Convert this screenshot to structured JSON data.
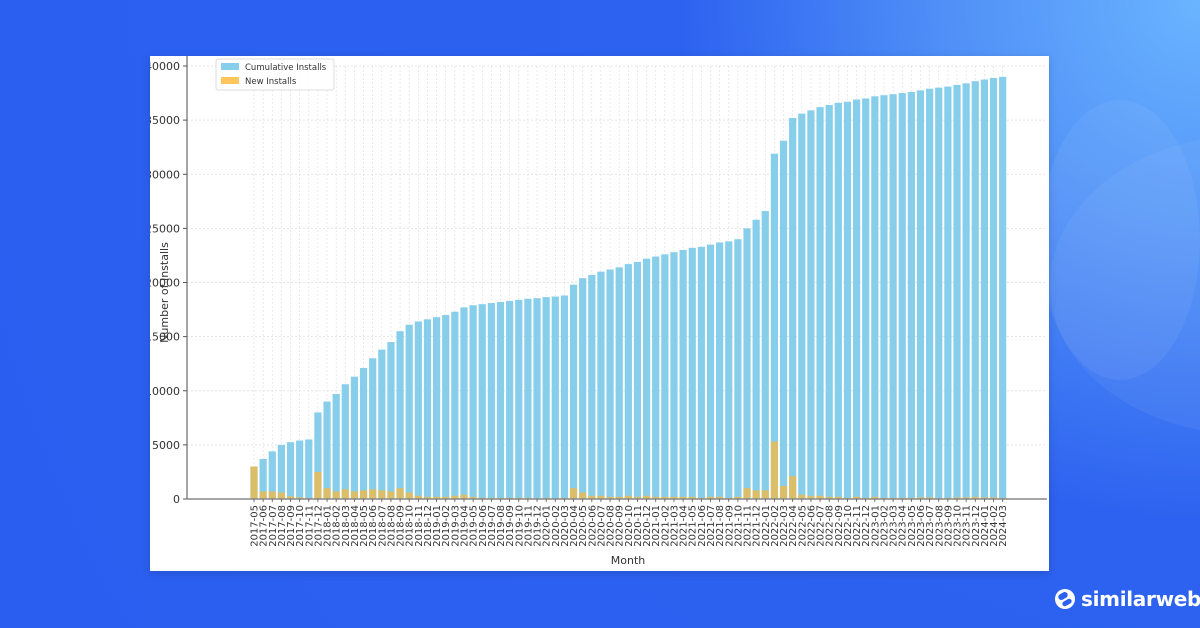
{
  "brand": {
    "name": "similarweb"
  },
  "chart_data": {
    "type": "bar",
    "title": "",
    "xlabel": "Month",
    "ylabel": "Number of Installs",
    "ylim": [
      0,
      40000
    ],
    "yticks": [
      0,
      5000,
      10000,
      15000,
      20000,
      25000,
      30000,
      35000,
      40000
    ],
    "grid": true,
    "legend_position": "upper left",
    "colors": {
      "cumulative": "#87ceeb",
      "new": "#ffb833",
      "axis": "#555555",
      "grid": "#dddddd"
    },
    "categories": [
      "2017-05",
      "2017-06",
      "2017-07",
      "2017-08",
      "2017-09",
      "2017-10",
      "2017-11",
      "2017-12",
      "2018-01",
      "2018-02",
      "2018-03",
      "2018-04",
      "2018-05",
      "2018-06",
      "2018-07",
      "2018-08",
      "2018-09",
      "2018-10",
      "2018-11",
      "2018-12",
      "2019-01",
      "2019-02",
      "2019-03",
      "2019-04",
      "2019-05",
      "2019-06",
      "2019-07",
      "2019-08",
      "2019-09",
      "2019-10",
      "2019-11",
      "2019-12",
      "2020-01",
      "2020-02",
      "2020-03",
      "2020-04",
      "2020-05",
      "2020-06",
      "2020-07",
      "2020-08",
      "2020-09",
      "2020-10",
      "2020-11",
      "2020-12",
      "2021-01",
      "2021-02",
      "2021-03",
      "2021-04",
      "2021-05",
      "2021-06",
      "2021-07",
      "2021-08",
      "2021-09",
      "2021-10",
      "2021-11",
      "2021-12",
      "2022-01",
      "2022-02",
      "2022-03",
      "2022-04",
      "2022-05",
      "2022-06",
      "2022-07",
      "2022-08",
      "2022-09",
      "2022-10",
      "2022-11",
      "2022-12",
      "2023-01",
      "2023-02",
      "2023-03",
      "2023-04",
      "2023-05",
      "2023-06",
      "2023-07",
      "2023-08",
      "2023-09",
      "2023-10",
      "2023-11",
      "2023-12",
      "2024-01",
      "2024-02",
      "2024-03"
    ],
    "series": [
      {
        "name": "Cumulative Installs",
        "values": [
          3000,
          3700,
          4400,
          5000,
          5250,
          5400,
          5500,
          8000,
          9000,
          9700,
          10600,
          11300,
          12100,
          13000,
          13800,
          14500,
          15500,
          16100,
          16400,
          16600,
          16800,
          17000,
          17300,
          17700,
          17900,
          18000,
          18100,
          18200,
          18300,
          18400,
          18500,
          18550,
          18650,
          18700,
          18800,
          19800,
          20400,
          20700,
          21000,
          21200,
          21400,
          21700,
          21900,
          22200,
          22400,
          22600,
          22800,
          23000,
          23200,
          23300,
          23500,
          23700,
          23800,
          24000,
          25000,
          25800,
          26600,
          31900,
          33100,
          35200,
          35600,
          35900,
          36200,
          36400,
          36600,
          36700,
          36900,
          37000,
          37200,
          37300,
          37400,
          37500,
          37600,
          37750,
          37900,
          38000,
          38100,
          38250,
          38400,
          38600,
          38750,
          38900,
          39000
        ]
      },
      {
        "name": "New Installs",
        "values": [
          3000,
          700,
          700,
          600,
          250,
          150,
          100,
          2500,
          1000,
          700,
          900,
          700,
          800,
          900,
          800,
          700,
          1000,
          600,
          300,
          200,
          200,
          200,
          300,
          400,
          200,
          100,
          100,
          100,
          100,
          100,
          100,
          50,
          100,
          50,
          100,
          1000,
          600,
          300,
          300,
          200,
          200,
          300,
          200,
          300,
          200,
          200,
          200,
          200,
          200,
          100,
          200,
          200,
          100,
          200,
          1000,
          800,
          800,
          5300,
          1200,
          2100,
          400,
          300,
          300,
          200,
          200,
          100,
          200,
          100,
          200,
          100,
          100,
          100,
          100,
          150,
          150,
          100,
          100,
          150,
          150,
          200,
          150,
          150,
          100
        ]
      }
    ]
  }
}
